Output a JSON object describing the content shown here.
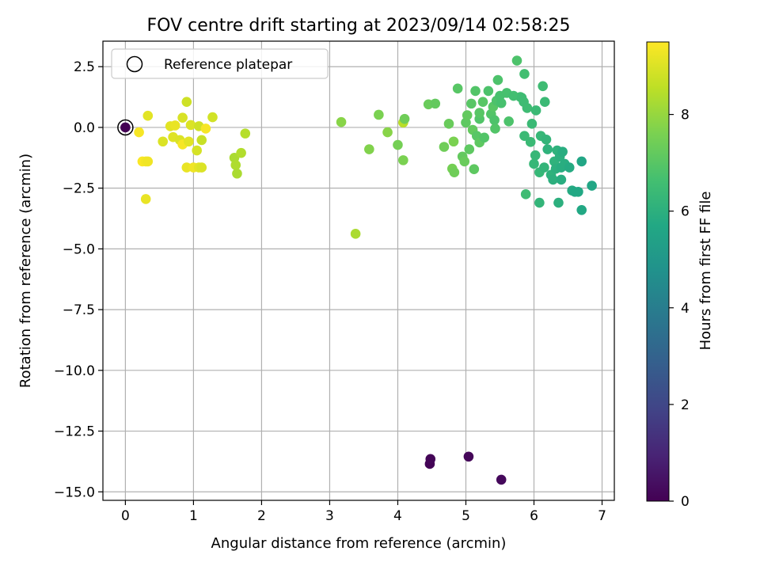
{
  "chart_data": {
    "type": "scatter",
    "title": "FOV centre drift starting at 2023/09/14 02:58:25",
    "xlabel": "Angular distance from reference (arcmin)",
    "ylabel": "Rotation from reference (arcmin)",
    "xlim": [
      -0.33,
      7.18
    ],
    "ylim": [
      -15.35,
      3.55
    ],
    "x_ticks": [
      0,
      1,
      2,
      3,
      4,
      5,
      6,
      7
    ],
    "x_tick_labels": [
      "0",
      "1",
      "2",
      "3",
      "4",
      "5",
      "6",
      "7"
    ],
    "y_ticks": [
      2.5,
      0.0,
      -2.5,
      -5.0,
      -7.5,
      -10.0,
      -12.5,
      -15.0
    ],
    "y_tick_labels": [
      "2.5",
      "0.0",
      "−2.5",
      "−5.0",
      "−7.5",
      "−10.0",
      "−12.5",
      "−15.0"
    ],
    "grid": true,
    "legend": {
      "position": "top-left",
      "entries": [
        "Reference platepar"
      ]
    },
    "reference_point": {
      "x": 0.0,
      "y": 0.0
    },
    "colorbar": {
      "label": "Hours from first FF file",
      "colormap": "viridis",
      "range": [
        0,
        9.5
      ],
      "ticks": [
        0,
        2,
        4,
        6,
        8
      ],
      "tick_labels": [
        "0",
        "2",
        "4",
        "6",
        "8"
      ]
    },
    "points": [
      {
        "x": 0.0,
        "y": 0.0,
        "c": 0.0
      },
      {
        "x": 4.47,
        "y": -13.85,
        "c": 0.05
      },
      {
        "x": 4.48,
        "y": -13.65,
        "c": 0.1
      },
      {
        "x": 5.04,
        "y": -13.55,
        "c": 0.15
      },
      {
        "x": 5.52,
        "y": -14.5,
        "c": 0.2
      },
      {
        "x": 0.2,
        "y": -0.2,
        "c": 9.4
      },
      {
        "x": 0.25,
        "y": -1.4,
        "c": 9.45
      },
      {
        "x": 0.3,
        "y": -1.4,
        "c": 9.35
      },
      {
        "x": 0.33,
        "y": -1.4,
        "c": 9.3
      },
      {
        "x": 0.3,
        "y": -2.95,
        "c": 9.2
      },
      {
        "x": 0.33,
        "y": 0.48,
        "c": 9.1
      },
      {
        "x": 0.55,
        "y": -0.58,
        "c": 9.0
      },
      {
        "x": 0.66,
        "y": 0.05,
        "c": 9.1
      },
      {
        "x": 0.7,
        "y": -0.4,
        "c": 9.05
      },
      {
        "x": 0.73,
        "y": 0.08,
        "c": 9.2
      },
      {
        "x": 0.8,
        "y": -0.52,
        "c": 9.0
      },
      {
        "x": 0.84,
        "y": -0.7,
        "c": 9.4
      },
      {
        "x": 0.84,
        "y": 0.4,
        "c": 8.95
      },
      {
        "x": 0.9,
        "y": 1.05,
        "c": 8.8
      },
      {
        "x": 0.9,
        "y": -1.65,
        "c": 9.2
      },
      {
        "x": 0.93,
        "y": -0.58,
        "c": 9.1
      },
      {
        "x": 0.96,
        "y": 0.1,
        "c": 9.0
      },
      {
        "x": 1.0,
        "y": -1.65,
        "c": 9.3
      },
      {
        "x": 1.05,
        "y": -0.95,
        "c": 8.9
      },
      {
        "x": 1.08,
        "y": -1.65,
        "c": 9.1
      },
      {
        "x": 1.08,
        "y": 0.05,
        "c": 8.8
      },
      {
        "x": 1.12,
        "y": -0.52,
        "c": 8.7
      },
      {
        "x": 1.12,
        "y": -1.65,
        "c": 9.0
      },
      {
        "x": 1.18,
        "y": -0.05,
        "c": 9.4
      },
      {
        "x": 1.28,
        "y": 0.42,
        "c": 8.85
      },
      {
        "x": 1.6,
        "y": -1.25,
        "c": 8.3
      },
      {
        "x": 1.62,
        "y": -1.55,
        "c": 8.35
      },
      {
        "x": 1.64,
        "y": -1.9,
        "c": 8.3
      },
      {
        "x": 1.7,
        "y": -1.05,
        "c": 8.4
      },
      {
        "x": 1.76,
        "y": -0.25,
        "c": 8.45
      },
      {
        "x": 3.38,
        "y": -4.38,
        "c": 8.3
      },
      {
        "x": 4.08,
        "y": 0.2,
        "c": 8.5
      },
      {
        "x": 3.17,
        "y": 0.22,
        "c": 7.8
      },
      {
        "x": 3.58,
        "y": -0.9,
        "c": 7.7
      },
      {
        "x": 3.72,
        "y": 0.52,
        "c": 7.6
      },
      {
        "x": 3.85,
        "y": -0.2,
        "c": 7.8
      },
      {
        "x": 4.0,
        "y": -0.72,
        "c": 7.5
      },
      {
        "x": 4.08,
        "y": -1.35,
        "c": 7.6
      },
      {
        "x": 4.1,
        "y": 0.35,
        "c": 7.4
      },
      {
        "x": 4.45,
        "y": 0.95,
        "c": 7.3
      },
      {
        "x": 4.55,
        "y": 0.98,
        "c": 7.2
      },
      {
        "x": 4.68,
        "y": -0.8,
        "c": 7.4
      },
      {
        "x": 4.75,
        "y": 0.15,
        "c": 7.3
      },
      {
        "x": 4.8,
        "y": -1.7,
        "c": 7.5
      },
      {
        "x": 4.82,
        "y": -0.58,
        "c": 7.6
      },
      {
        "x": 4.83,
        "y": -1.85,
        "c": 7.4
      },
      {
        "x": 4.88,
        "y": 1.6,
        "c": 7.0
      },
      {
        "x": 4.95,
        "y": -1.2,
        "c": 7.2
      },
      {
        "x": 4.98,
        "y": -1.4,
        "c": 7.3
      },
      {
        "x": 5.0,
        "y": 0.2,
        "c": 7.1
      },
      {
        "x": 5.02,
        "y": 0.5,
        "c": 7.2
      },
      {
        "x": 5.05,
        "y": -0.9,
        "c": 7.1
      },
      {
        "x": 5.08,
        "y": 0.98,
        "c": 7.0
      },
      {
        "x": 5.1,
        "y": -0.1,
        "c": 7.2
      },
      {
        "x": 5.12,
        "y": -1.72,
        "c": 7.1
      },
      {
        "x": 5.14,
        "y": 1.5,
        "c": 6.9
      },
      {
        "x": 5.16,
        "y": -0.35,
        "c": 7.0
      },
      {
        "x": 5.2,
        "y": 0.35,
        "c": 6.9
      },
      {
        "x": 5.2,
        "y": 0.6,
        "c": 7.0
      },
      {
        "x": 5.2,
        "y": -0.62,
        "c": 7.1
      },
      {
        "x": 5.25,
        "y": 1.05,
        "c": 7.0
      },
      {
        "x": 5.27,
        "y": -0.42,
        "c": 6.9
      },
      {
        "x": 5.33,
        "y": 1.5,
        "c": 6.8
      },
      {
        "x": 5.37,
        "y": 0.55,
        "c": 6.9
      },
      {
        "x": 5.4,
        "y": 0.85,
        "c": 7.0
      },
      {
        "x": 5.42,
        "y": 0.3,
        "c": 6.8
      },
      {
        "x": 5.43,
        "y": -0.05,
        "c": 6.9
      },
      {
        "x": 5.45,
        "y": 1.1,
        "c": 6.8
      },
      {
        "x": 5.47,
        "y": 1.95,
        "c": 6.8
      },
      {
        "x": 5.5,
        "y": 1.3,
        "c": 6.7
      },
      {
        "x": 5.52,
        "y": 1.0,
        "c": 6.7
      },
      {
        "x": 5.6,
        "y": 1.42,
        "c": 6.7
      },
      {
        "x": 5.63,
        "y": 0.25,
        "c": 6.8
      },
      {
        "x": 5.7,
        "y": 1.3,
        "c": 6.6
      },
      {
        "x": 5.75,
        "y": 2.75,
        "c": 6.8
      },
      {
        "x": 5.8,
        "y": 1.25,
        "c": 6.6
      },
      {
        "x": 5.82,
        "y": 1.22,
        "c": 6.5
      },
      {
        "x": 5.85,
        "y": 1.05,
        "c": 6.5
      },
      {
        "x": 5.86,
        "y": 2.2,
        "c": 6.6
      },
      {
        "x": 5.86,
        "y": -0.35,
        "c": 6.4
      },
      {
        "x": 5.88,
        "y": -2.75,
        "c": 6.5
      },
      {
        "x": 5.9,
        "y": 0.8,
        "c": 6.5
      },
      {
        "x": 5.95,
        "y": -0.6,
        "c": 6.4
      },
      {
        "x": 5.97,
        "y": 0.15,
        "c": 6.4
      },
      {
        "x": 6.0,
        "y": -1.5,
        "c": 6.3
      },
      {
        "x": 6.02,
        "y": -1.15,
        "c": 6.3
      },
      {
        "x": 6.03,
        "y": 0.7,
        "c": 6.4
      },
      {
        "x": 6.08,
        "y": -1.85,
        "c": 6.3
      },
      {
        "x": 6.08,
        "y": -3.1,
        "c": 6.2
      },
      {
        "x": 6.1,
        "y": -0.35,
        "c": 6.3
      },
      {
        "x": 6.13,
        "y": 1.7,
        "c": 6.5
      },
      {
        "x": 6.15,
        "y": -1.65,
        "c": 6.2
      },
      {
        "x": 6.16,
        "y": 1.05,
        "c": 6.4
      },
      {
        "x": 6.18,
        "y": -0.5,
        "c": 6.2
      },
      {
        "x": 6.2,
        "y": -0.9,
        "c": 6.1
      },
      {
        "x": 6.25,
        "y": -1.95,
        "c": 6.1
      },
      {
        "x": 6.28,
        "y": -2.15,
        "c": 6.0
      },
      {
        "x": 6.3,
        "y": -1.4,
        "c": 6.1
      },
      {
        "x": 6.32,
        "y": -1.7,
        "c": 6.0
      },
      {
        "x": 6.34,
        "y": -0.95,
        "c": 6.1
      },
      {
        "x": 6.36,
        "y": -3.1,
        "c": 6.0
      },
      {
        "x": 6.38,
        "y": -1.2,
        "c": 6.0
      },
      {
        "x": 6.4,
        "y": -1.65,
        "c": 5.9
      },
      {
        "x": 6.4,
        "y": -2.15,
        "c": 5.9
      },
      {
        "x": 6.42,
        "y": -1.0,
        "c": 5.9
      },
      {
        "x": 6.45,
        "y": -1.5,
        "c": 5.9
      },
      {
        "x": 6.52,
        "y": -1.65,
        "c": 5.8
      },
      {
        "x": 6.56,
        "y": -2.6,
        "c": 5.8
      },
      {
        "x": 6.6,
        "y": -2.65,
        "c": 5.7
      },
      {
        "x": 6.65,
        "y": -2.65,
        "c": 5.7
      },
      {
        "x": 6.7,
        "y": -3.4,
        "c": 5.7
      },
      {
        "x": 6.7,
        "y": -1.4,
        "c": 5.6
      },
      {
        "x": 6.85,
        "y": -2.4,
        "c": 5.6
      }
    ]
  }
}
